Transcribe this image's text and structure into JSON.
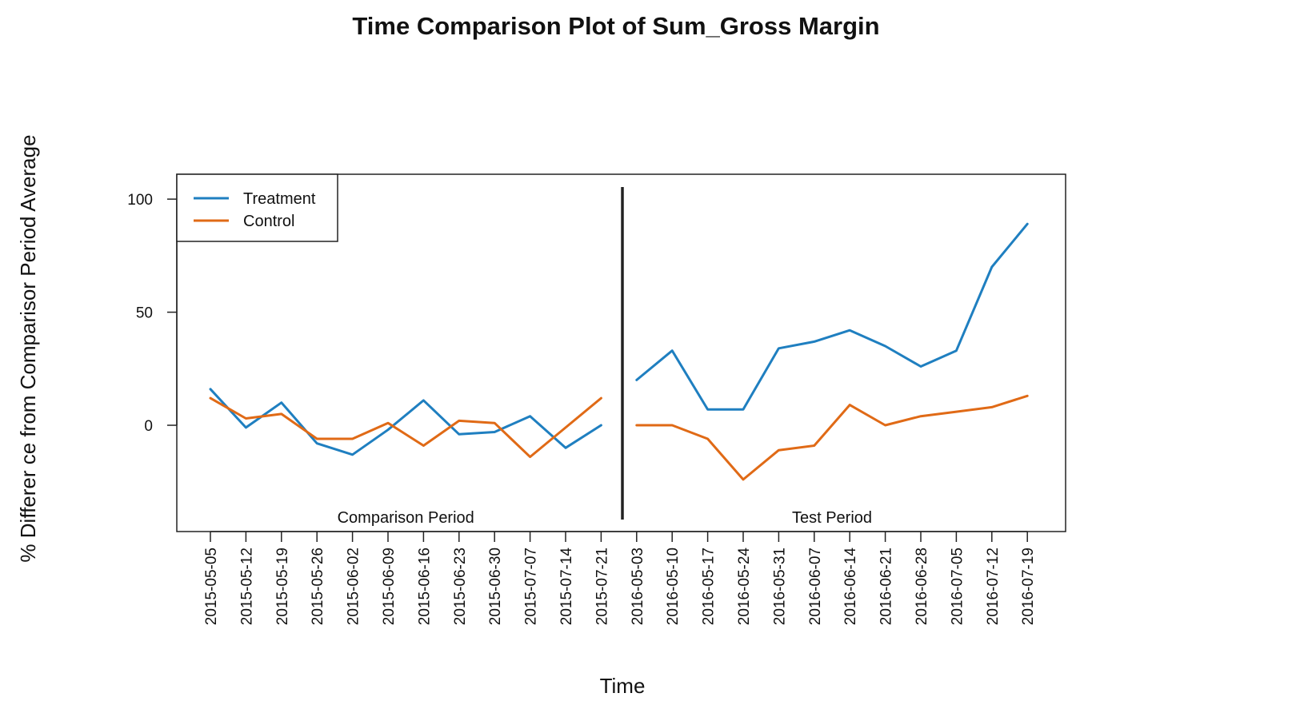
{
  "chart_data": {
    "type": "line",
    "title": "Time Comparison Plot of Sum_Gross Margin",
    "xlabel": "Time",
    "ylabel": "% Differer ce from Comparisor Period Average",
    "ylim": [
      -47,
      111
    ],
    "yticks": [
      0,
      50,
      100
    ],
    "grid": false,
    "legend_position": "top-left",
    "categories": [
      "2015-05-05",
      "2015-05-12",
      "2015-05-19",
      "2015-05-26",
      "2015-06-02",
      "2015-06-09",
      "2015-06-16",
      "2015-06-23",
      "2015-06-30",
      "2015-07-07",
      "2015-07-14",
      "2015-07-21",
      "2016-05-03",
      "2016-05-10",
      "2016-05-17",
      "2016-05-24",
      "2016-05-31",
      "2016-06-07",
      "2016-06-14",
      "2016-06-21",
      "2016-06-28",
      "2016-07-05",
      "2016-07-12",
      "2016-07-19"
    ],
    "periods": [
      {
        "label": "Comparison Period",
        "start": 0,
        "end": 11
      },
      {
        "label": "Test Period",
        "start": 12,
        "end": 23
      }
    ],
    "series": [
      {
        "name": "Treatment",
        "color": "#1f7fc0",
        "segments": [
          [
            16,
            -1,
            10,
            -8,
            -13,
            -2,
            11,
            -4,
            -3,
            4,
            -10,
            0
          ],
          [
            20,
            33,
            7,
            7,
            34,
            37,
            42,
            35,
            26,
            33,
            70,
            89
          ]
        ]
      },
      {
        "name": "Control",
        "color": "#e06a16",
        "segments": [
          [
            12,
            3,
            5,
            -6,
            -6,
            1,
            -9,
            2,
            1,
            -14,
            -1,
            12
          ],
          [
            0,
            0,
            -6,
            -24,
            -11,
            -9,
            9,
            0,
            4,
            6,
            8,
            13
          ]
        ]
      }
    ]
  }
}
